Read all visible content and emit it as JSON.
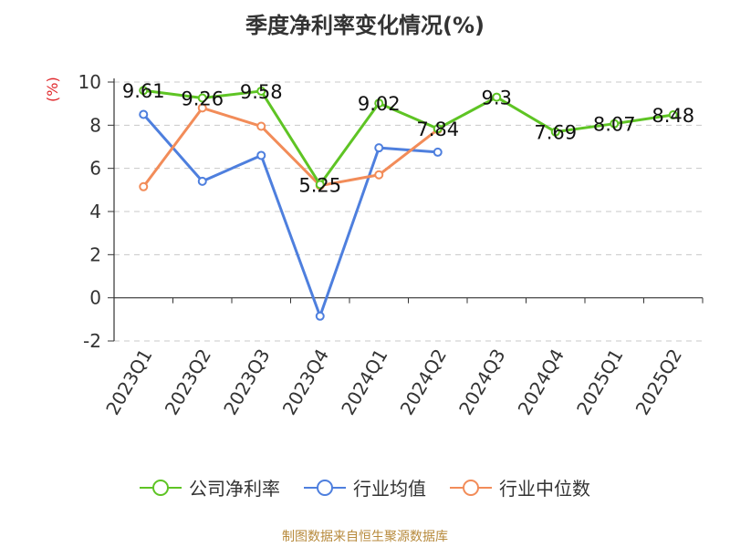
{
  "chart_data": {
    "type": "line",
    "title": "季度净利率变化情况(%)",
    "ylabel": "(%)",
    "xlabel": "",
    "ylim": [
      -2,
      10
    ],
    "yticks": [
      -2,
      0,
      2,
      4,
      6,
      8,
      10
    ],
    "categories": [
      "2023Q1",
      "2023Q2",
      "2023Q3",
      "2023Q4",
      "2024Q1",
      "2024Q2",
      "2024Q3",
      "2024Q4",
      "2025Q1",
      "2025Q2"
    ],
    "grid": true,
    "legend_position": "bottom",
    "series": [
      {
        "name": "公司净利率",
        "color": "#5ec424",
        "values": [
          9.61,
          9.26,
          9.58,
          5.25,
          9.02,
          7.84,
          9.3,
          7.69,
          8.07,
          8.48
        ],
        "labels": [
          "9.61",
          "9.26",
          "9.58",
          "5.25",
          "9.02",
          "7.84",
          "9.3",
          "7.69",
          "8.07",
          "8.48"
        ]
      },
      {
        "name": "行业均值",
        "color": "#4e7fde",
        "values": [
          8.5,
          5.4,
          6.6,
          -0.85,
          6.95,
          6.75,
          null,
          null,
          null,
          null
        ]
      },
      {
        "name": "行业中位数",
        "color": "#f28c59",
        "values": [
          5.15,
          8.8,
          7.95,
          5.2,
          5.7,
          7.8,
          null,
          null,
          null,
          null
        ]
      }
    ]
  },
  "footer": "制图数据来自恒生聚源数据库"
}
